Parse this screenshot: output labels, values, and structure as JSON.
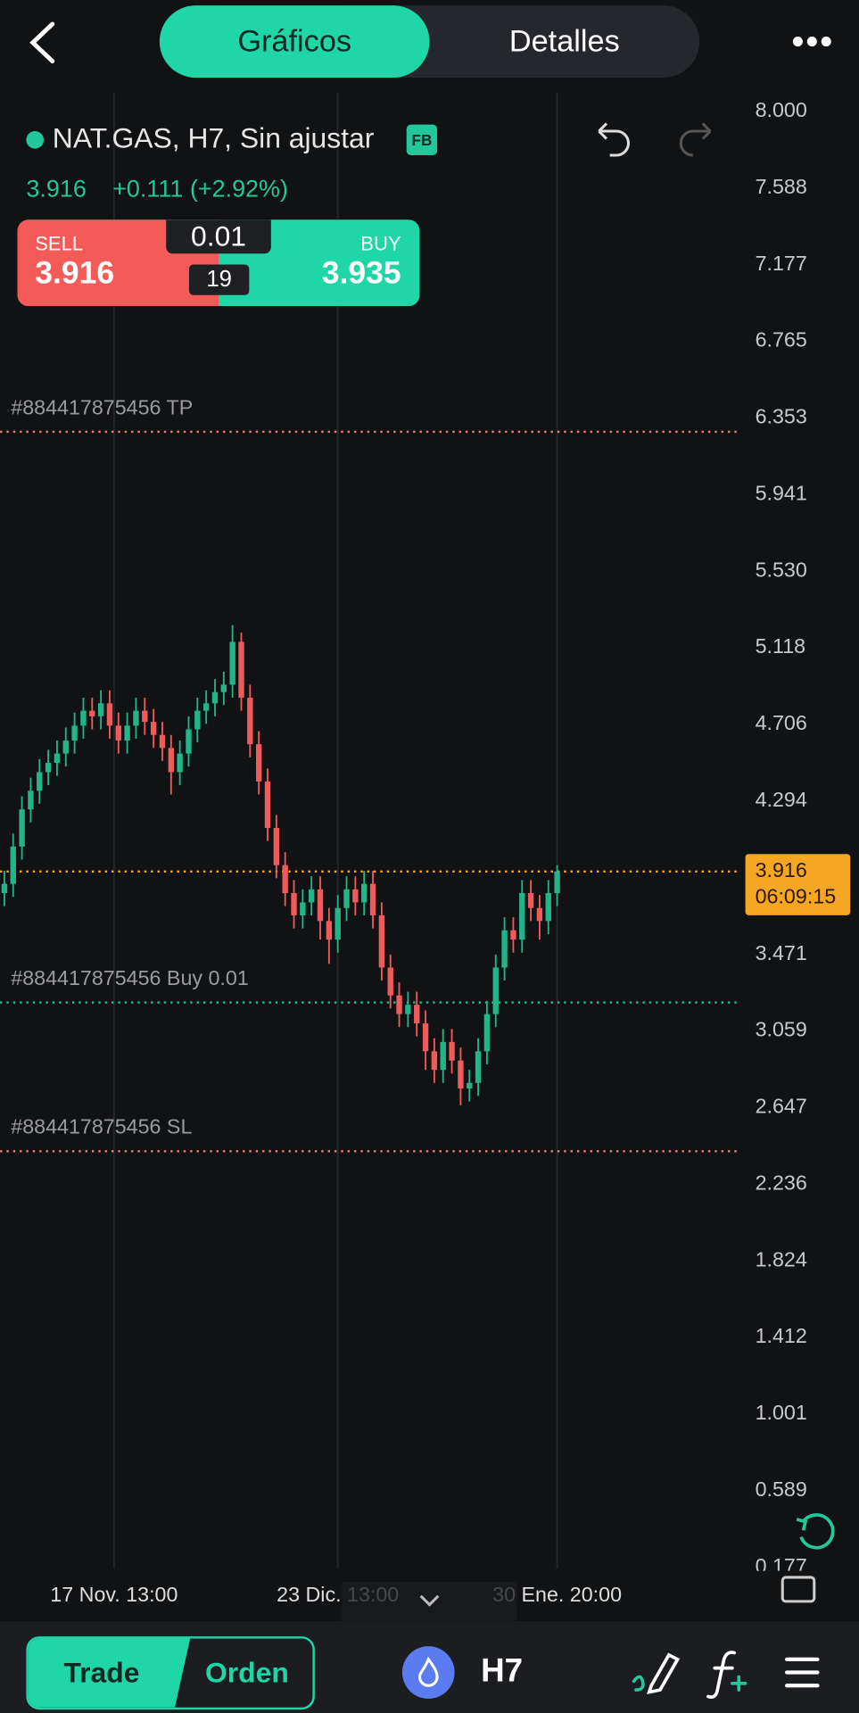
{
  "header": {
    "tabs": [
      "Gráficos",
      "Detalles"
    ]
  },
  "symbol": {
    "name": "NAT.GAS, H7, Sin ajustar",
    "badge": "FB",
    "price": "3.916",
    "change": "+0.111 (+2.92%)"
  },
  "trade_panel": {
    "sell_label": "SELL",
    "sell_price": "3.916",
    "lot": "0.01",
    "spread": "19",
    "buy_label": "BUY",
    "buy_price": "3.935"
  },
  "chart_data": {
    "type": "candlestick",
    "up_color": "#22b58a",
    "down_color": "#ef5b5b",
    "grid": true,
    "candles": {
      "open": [
        3.8,
        3.85,
        4.05,
        4.25,
        4.35,
        4.45,
        4.5,
        4.55,
        4.62,
        4.7,
        4.78,
        4.75,
        4.82,
        4.7,
        4.62,
        4.7,
        4.78,
        4.72,
        4.65,
        4.58,
        4.45,
        4.55,
        4.68,
        4.78,
        4.82,
        4.88,
        4.92,
        5.15,
        4.85,
        4.6,
        4.4,
        4.15,
        3.95,
        3.8,
        3.68,
        3.75,
        3.82,
        3.65,
        3.55,
        3.72,
        3.82,
        3.75,
        3.85,
        3.68,
        3.4,
        3.25,
        3.15,
        3.2,
        3.1,
        2.95,
        2.85,
        3.0,
        2.9,
        2.75,
        2.78,
        2.95,
        3.15,
        3.4,
        3.6,
        3.55,
        3.8,
        3.72,
        3.65,
        3.8
      ],
      "high": [
        3.92,
        4.12,
        4.32,
        4.42,
        4.52,
        4.57,
        4.62,
        4.69,
        4.77,
        4.85,
        4.85,
        4.89,
        4.89,
        4.77,
        4.77,
        4.85,
        4.85,
        4.79,
        4.72,
        4.65,
        4.62,
        4.75,
        4.85,
        4.89,
        4.95,
        4.99,
        5.24,
        5.2,
        4.92,
        4.67,
        4.47,
        4.22,
        4.02,
        3.87,
        3.82,
        3.89,
        3.89,
        3.72,
        3.79,
        3.89,
        3.89,
        3.92,
        3.92,
        3.75,
        3.47,
        3.32,
        3.27,
        3.27,
        3.17,
        3.02,
        3.07,
        3.07,
        2.97,
        2.85,
        3.02,
        3.22,
        3.47,
        3.67,
        3.67,
        3.87,
        3.87,
        3.79,
        3.87,
        3.95
      ],
      "low": [
        3.73,
        3.78,
        3.98,
        4.18,
        4.28,
        4.38,
        4.43,
        4.48,
        4.55,
        4.63,
        4.68,
        4.68,
        4.63,
        4.55,
        4.55,
        4.63,
        4.65,
        4.58,
        4.51,
        4.33,
        4.38,
        4.48,
        4.61,
        4.71,
        4.75,
        4.81,
        4.85,
        4.78,
        4.53,
        4.33,
        4.08,
        3.88,
        3.73,
        3.61,
        3.61,
        3.68,
        3.55,
        3.42,
        3.48,
        3.65,
        3.68,
        3.68,
        3.61,
        3.33,
        3.18,
        3.08,
        3.08,
        3.03,
        2.85,
        2.78,
        2.78,
        2.83,
        2.66,
        2.68,
        2.71,
        2.88,
        3.08,
        3.33,
        3.48,
        3.48,
        3.65,
        3.55,
        3.58,
        3.73
      ],
      "close": [
        3.85,
        4.05,
        4.25,
        4.35,
        4.45,
        4.5,
        4.55,
        4.62,
        4.7,
        4.78,
        4.75,
        4.82,
        4.7,
        4.62,
        4.7,
        4.78,
        4.72,
        4.65,
        4.58,
        4.45,
        4.55,
        4.68,
        4.78,
        4.82,
        4.88,
        4.92,
        5.15,
        4.85,
        4.6,
        4.4,
        4.15,
        3.95,
        3.8,
        3.68,
        3.75,
        3.82,
        3.65,
        3.55,
        3.72,
        3.82,
        3.75,
        3.85,
        3.68,
        3.4,
        3.25,
        3.15,
        3.2,
        3.1,
        2.95,
        2.85,
        3.0,
        2.9,
        2.75,
        2.78,
        2.95,
        3.15,
        3.4,
        3.6,
        3.55,
        3.8,
        3.72,
        3.65,
        3.8,
        3.916
      ]
    },
    "xlim": [
      -0.5,
      84.2
    ],
    "xticks": [
      {
        "value": 12.5,
        "label": "17 Nov. 13:00"
      },
      {
        "value": 38,
        "label": "23 Dic. 13:00"
      },
      {
        "value": 63,
        "label": "30 Ene. 20:00"
      }
    ],
    "ylim": [
      0.17,
      8.1
    ],
    "yticks": [
      {
        "value": 8,
        "label": "8.000"
      },
      7.588,
      7.177,
      6.765,
      6.353,
      5.941,
      {
        "value": 5.53,
        "label": "5.530"
      },
      5.118,
      4.706,
      4.294,
      3.471,
      3.059,
      2.647,
      2.236,
      1.824,
      1.412,
      1.001,
      0.589,
      0.177
    ],
    "levels": [
      {
        "label": "#884417875456 TP",
        "value": 6.279,
        "color": "#e8826e"
      },
      {
        "label": "#884417875456 Buy 0.01",
        "value": 3.212,
        "color": "#22b58a"
      },
      {
        "label": "#884417875456 SL",
        "value": 2.413,
        "color": "#e8826e"
      }
    ],
    "current_price": {
      "value": 3.916,
      "countdown": "06:09:15",
      "color": "#f5a623"
    }
  },
  "bottom_bar": {
    "trade": "Trade",
    "orden": "Orden",
    "timeframe": "H7"
  }
}
